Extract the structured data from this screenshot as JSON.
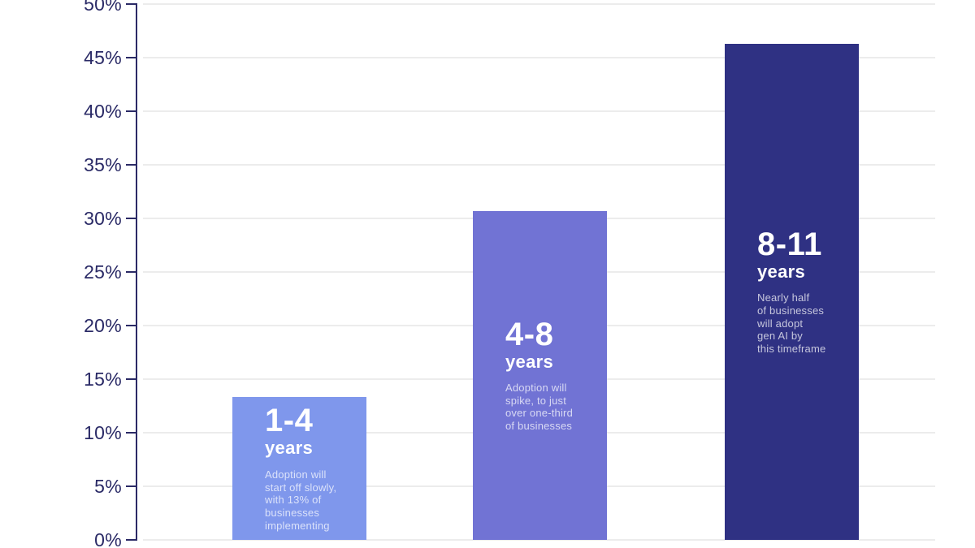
{
  "chart_data": {
    "type": "bar",
    "title": "",
    "xlabel": "",
    "ylabel": "",
    "unit": "%",
    "ylim": [
      0,
      50
    ],
    "ytick_step": 5,
    "ytick_labels": [
      "0%",
      "5%",
      "10%",
      "15%",
      "20%",
      "25%",
      "30%",
      "35%",
      "40%",
      "45%",
      "50%"
    ],
    "grid": true,
    "legend": "none",
    "categories": [
      "1-4 years",
      "4-8 years",
      "8-11 years"
    ],
    "values": [
      13.3,
      30.7,
      46.3
    ],
    "bars": [
      {
        "range": "1-4",
        "unit_label": "years",
        "value": 13.3,
        "color": "#7f97ec",
        "description": "Adoption will\nstart off slowly,\nwith 13% of\nbusinesses\nimplementing"
      },
      {
        "range": "4-8",
        "unit_label": "years",
        "value": 30.7,
        "color": "#7173d4",
        "description": "Adoption will\nspike, to just\nover one-third\nof businesses"
      },
      {
        "range": "8-11",
        "unit_label": "years",
        "value": 46.3,
        "color": "#2f3183",
        "description": "Nearly half\nof businesses\nwill adopt\ngen AI by\nthis timeframe"
      }
    ],
    "colors": {
      "axis": "#2b2a66",
      "tick_label": "#2a2a66",
      "gridline": "#ececec",
      "bar_text": "#ffffff",
      "bar_description_text": "rgba(255,255,255,0.72)",
      "background": "#ffffff"
    }
  }
}
